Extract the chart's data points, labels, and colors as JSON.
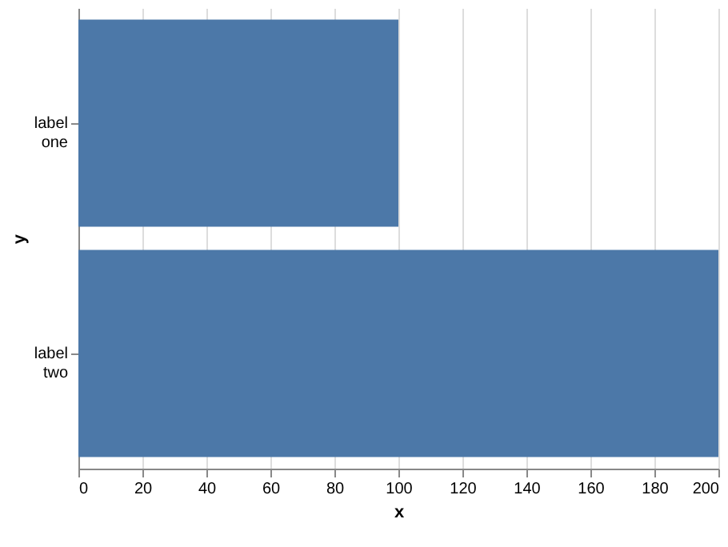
{
  "chart_data": {
    "type": "bar",
    "orientation": "horizontal",
    "xlabel": "x",
    "ylabel": "y",
    "categories": [
      "label one",
      "label two"
    ],
    "values": [
      100,
      200
    ],
    "color": "#4c78a8",
    "xlim": [
      0,
      200
    ],
    "xticks": [
      0,
      20,
      40,
      60,
      80,
      100,
      120,
      140,
      160,
      180,
      200
    ],
    "grid": "x"
  }
}
